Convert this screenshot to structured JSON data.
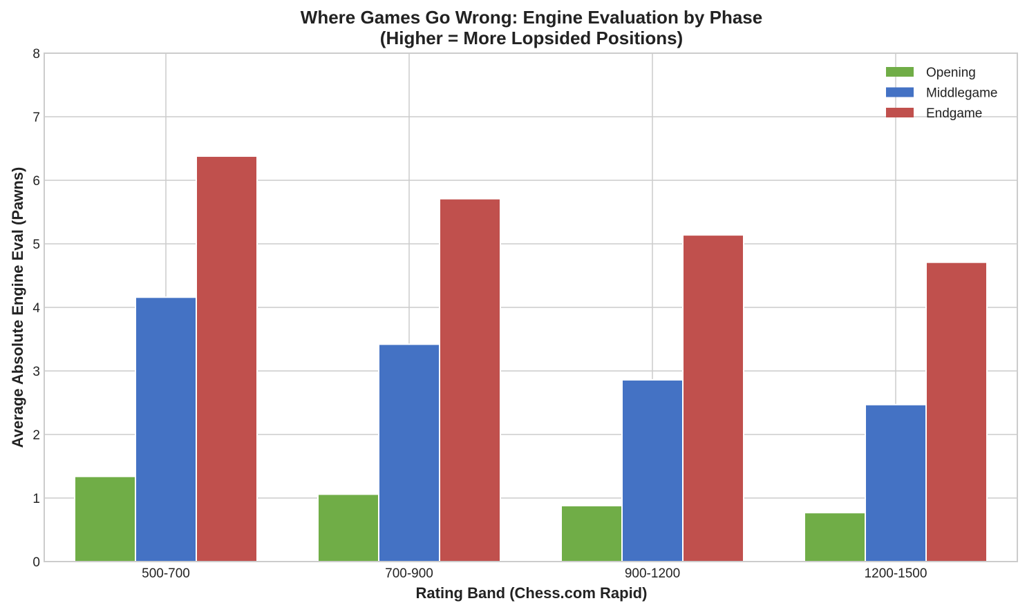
{
  "chart_data": {
    "type": "bar",
    "title": "Where Games Go Wrong: Engine Evaluation by Phase",
    "subtitle": "(Higher = More Lopsided Positions)",
    "xlabel": "Rating Band (Chess.com Rapid)",
    "ylabel": "Average Absolute Engine Eval (Pawns)",
    "ylim": [
      0,
      8
    ],
    "yticks": [
      "0",
      "1",
      "2",
      "3",
      "4",
      "5",
      "6",
      "7",
      "8"
    ],
    "categories": [
      "500-700",
      "700-900",
      "900-1200",
      "1200-1500"
    ],
    "series": [
      {
        "name": "Opening",
        "color": "#70ad47",
        "values": [
          1.34,
          1.06,
          0.88,
          0.77
        ]
      },
      {
        "name": "Middlegame",
        "color": "#4472c4",
        "values": [
          4.16,
          3.42,
          2.86,
          2.47
        ]
      },
      {
        "name": "Endgame",
        "color": "#c0504d",
        "values": [
          6.38,
          5.71,
          5.14,
          4.71
        ]
      }
    ],
    "grid": true,
    "legend_position": "top-right"
  }
}
